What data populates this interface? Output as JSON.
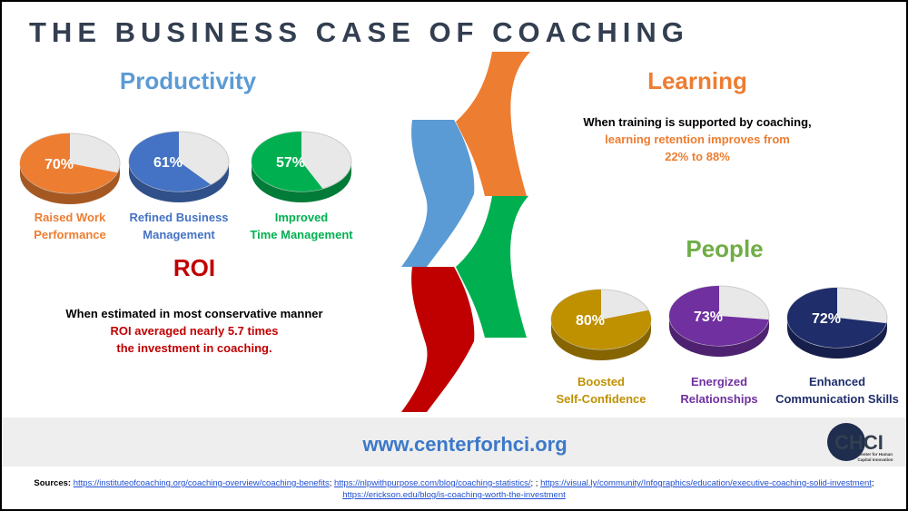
{
  "header": {
    "title": "THE BUSINESS CASE OF COACHING"
  },
  "productivity": {
    "heading": "Productivity",
    "pies": [
      {
        "value": 70,
        "value_label": "70%",
        "label": [
          "Raised Work",
          "Performance"
        ],
        "color": "#ed7d31"
      },
      {
        "value": 61,
        "value_label": "61%",
        "label": [
          "Refined Business",
          "Management"
        ],
        "color": "#4472c4"
      },
      {
        "value": 57,
        "value_label": "57%",
        "label": [
          "Improved",
          "Time Management"
        ],
        "color": "#00b050"
      }
    ]
  },
  "roi": {
    "heading": "ROI",
    "lines": [
      "When estimated in most conservative manner",
      "ROI averaged nearly 5.7 times",
      "the investment in coaching."
    ]
  },
  "learning": {
    "heading": "Learning",
    "lines": [
      "When training is supported by coaching,",
      "learning retention improves from",
      "22% to 88%"
    ]
  },
  "people": {
    "heading": "People",
    "pies": [
      {
        "value": 80,
        "value_label": "80%",
        "label": [
          "Boosted",
          "Self-Confidence"
        ],
        "color": "#bf9000"
      },
      {
        "value": 73,
        "value_label": "73%",
        "label": [
          "Energized",
          "Relationships"
        ],
        "color": "#7030a0"
      },
      {
        "value": 72,
        "value_label": "72%",
        "label": [
          "Enhanced",
          "Communication Skills"
        ],
        "color": "#1f2d6b"
      }
    ]
  },
  "footer": {
    "url": "www.centerforhci.org",
    "logo": {
      "mark": "CHCI",
      "lines": [
        "Center for Human",
        "Capital Innovation"
      ]
    }
  },
  "sources": {
    "label": "Sources:",
    "parts": [
      "https://instituteofcoaching.org/coaching-overview/coaching-benefits",
      "; ",
      "https://nlpwithpurpose.com/blog/coaching-statistics/",
      "; ; ",
      "https://visual.ly/community/Infographics/education/executive-coaching-solid-investment",
      "; ",
      "https://erickson.edu/blog/is-coaching-worth-the-investment"
    ]
  }
}
